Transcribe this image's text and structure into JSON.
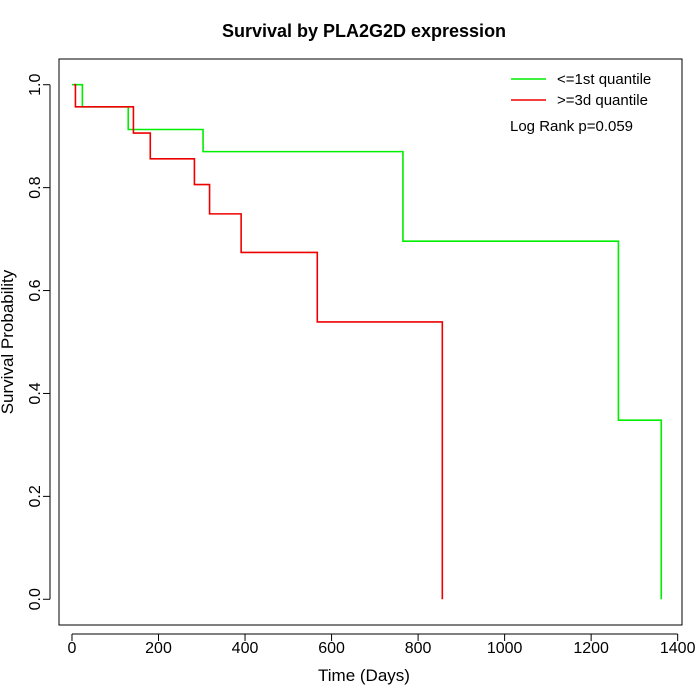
{
  "chart_data": {
    "type": "line",
    "step": true,
    "title": "Survival by PLA2G2D expression",
    "xlabel": "Time (Days)",
    "ylabel": "Survival Probability",
    "xlim": [
      -30,
      1410
    ],
    "ylim": [
      -0.05,
      1.05
    ],
    "xticks": [
      0,
      200,
      400,
      600,
      800,
      1000,
      1200,
      1400
    ],
    "xtick_labels": [
      "0",
      "200",
      "400",
      "600",
      "800",
      "1000",
      "1200",
      "1400"
    ],
    "yticks": [
      0.0,
      0.2,
      0.4,
      0.6,
      0.8,
      1.0
    ],
    "ytick_labels": [
      "0.0",
      "0.2",
      "0.4",
      "0.6",
      "0.8",
      "1.0"
    ],
    "grid": false,
    "legend_position": "top-right",
    "annotation": "Log Rank p=0.059",
    "series": [
      {
        "name": "<=1st quantile",
        "color": "#00ee00",
        "points": [
          [
            0,
            1.0
          ],
          [
            24,
            0.957
          ],
          [
            130,
            0.913
          ],
          [
            303,
            0.87
          ],
          [
            765,
            0.696
          ],
          [
            1263,
            0.348
          ],
          [
            1362,
            0.0
          ]
        ]
      },
      {
        "name": ">=3d quantile",
        "color": "#ee0000",
        "points": [
          [
            5,
            1.0
          ],
          [
            8,
            0.957
          ],
          [
            142,
            0.906
          ],
          [
            181,
            0.856
          ],
          [
            283,
            0.806
          ],
          [
            318,
            0.749
          ],
          [
            391,
            0.674
          ],
          [
            567,
            0.539
          ],
          [
            856,
            0.0
          ]
        ]
      }
    ]
  }
}
